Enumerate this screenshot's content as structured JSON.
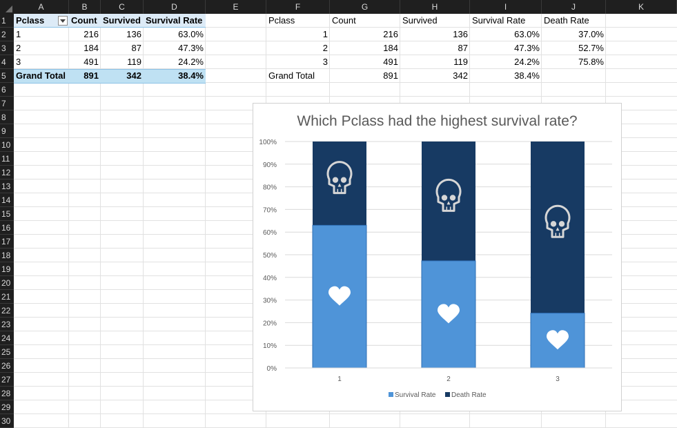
{
  "columns": [
    "A",
    "B",
    "C",
    "D",
    "E",
    "F",
    "G",
    "H",
    "I",
    "J",
    "K"
  ],
  "rows": [
    "1",
    "2",
    "3",
    "4",
    "5",
    "6",
    "7",
    "8",
    "9",
    "10",
    "11",
    "12",
    "13",
    "14",
    "15",
    "16",
    "17",
    "18",
    "19",
    "20",
    "21",
    "22",
    "23",
    "24",
    "25",
    "26",
    "27",
    "28",
    "29",
    "30"
  ],
  "pivot": {
    "headers": [
      "Pclass",
      "Count",
      "Survived",
      "Survival Rate"
    ],
    "rows": [
      {
        "pclass": "1",
        "count": "216",
        "survived": "136",
        "rate": "63.0%"
      },
      {
        "pclass": "2",
        "count": "184",
        "survived": "87",
        "rate": "47.3%"
      },
      {
        "pclass": "3",
        "count": "491",
        "survived": "119",
        "rate": "24.2%"
      }
    ],
    "total": {
      "label": "Grand Total",
      "count": "891",
      "survived": "342",
      "rate": "38.4%"
    }
  },
  "table2": {
    "headers": [
      "Pclass",
      "Count",
      "Survived",
      "Survival Rate",
      "Death Rate"
    ],
    "rows": [
      {
        "pclass": "1",
        "count": "216",
        "survived": "136",
        "rate": "63.0%",
        "death": "37.0%"
      },
      {
        "pclass": "2",
        "count": "184",
        "survived": "87",
        "rate": "47.3%",
        "death": "52.7%"
      },
      {
        "pclass": "3",
        "count": "491",
        "survived": "119",
        "rate": "24.2%",
        "death": "75.8%"
      }
    ],
    "total": {
      "label": "Grand Total",
      "count": "891",
      "survived": "342",
      "rate": "38.4%"
    }
  },
  "chart_data": {
    "type": "bar",
    "stacked": true,
    "title": "Which Pclass had the highest survival rate?",
    "categories": [
      "1",
      "2",
      "3"
    ],
    "series": [
      {
        "name": "Survival Rate",
        "values": [
          63.0,
          47.3,
          24.2
        ],
        "color": "#4f94d8",
        "icon": "heart-icon"
      },
      {
        "name": "Death Rate",
        "values": [
          37.0,
          52.7,
          75.8
        ],
        "color": "#173a63",
        "icon": "skull-icon"
      }
    ],
    "yticks": [
      "0%",
      "10%",
      "20%",
      "30%",
      "40%",
      "50%",
      "60%",
      "70%",
      "80%",
      "90%",
      "100%"
    ],
    "ylim": [
      0,
      100
    ],
    "grid": true,
    "legend": "bottom"
  }
}
